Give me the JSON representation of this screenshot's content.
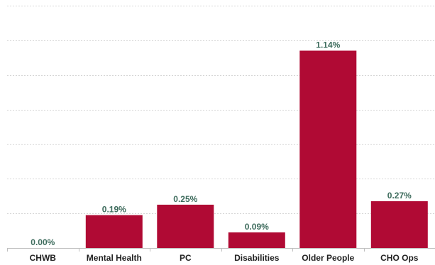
{
  "chart_data": {
    "type": "bar",
    "categories": [
      "CHWB",
      "Mental Health",
      "PC",
      "Disabilities",
      "Older People",
      "CHO Ops"
    ],
    "values": [
      0.0,
      0.19,
      0.25,
      0.09,
      1.14,
      0.27
    ],
    "value_labels": [
      "0.00%",
      "0.19%",
      "0.25%",
      "0.09%",
      "1.14%",
      "0.27%"
    ],
    "ylim": [
      0,
      1.4
    ],
    "grid_values": [
      0.2,
      0.4,
      0.6,
      0.8,
      1.0,
      1.2,
      1.4
    ],
    "grid": true,
    "legend": "none",
    "colors": {
      "bar": "#b00a34",
      "data_label": "#3d6b5c",
      "tick_label": "#222222",
      "grid": "#d6d6d6",
      "axis": "#bfbfbf"
    }
  }
}
